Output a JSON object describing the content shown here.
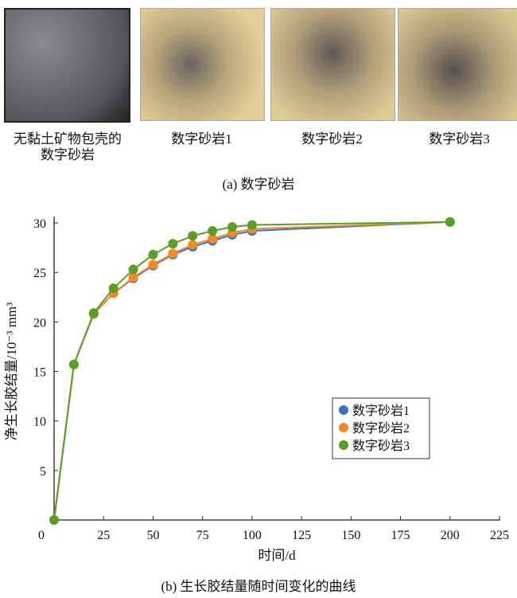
{
  "panel_a": {
    "samples": [
      {
        "label": "无黏土矿物包壳的\n数字砂岩",
        "style": "gray"
      },
      {
        "label": "数字砂岩1",
        "style": "sand"
      },
      {
        "label": "数字砂岩2",
        "style": "sand"
      },
      {
        "label": "数字砂岩3",
        "style": "sand"
      }
    ],
    "caption": "(a) 数字砂岩"
  },
  "panel_b_caption": "(b) 生长胶结量随时间变化的曲线",
  "chart_data": {
    "type": "line",
    "title": "",
    "xlabel": "时间/d",
    "ylabel": "净生长胶结量/10⁻³ mm³",
    "xlim": [
      0,
      225
    ],
    "ylim": [
      0,
      30
    ],
    "xticks": [
      0,
      25,
      50,
      75,
      100,
      125,
      150,
      175,
      200,
      225
    ],
    "yticks": [
      5,
      10,
      15,
      20,
      25,
      30
    ],
    "grid": false,
    "legend_position": "center-right",
    "x": [
      0,
      10,
      20,
      30,
      40,
      50,
      60,
      70,
      80,
      90,
      100,
      200
    ],
    "series": [
      {
        "name": "数字砂岩1",
        "color": "#3a70c0",
        "values": [
          0,
          15.7,
          20.8,
          22.9,
          24.4,
          25.7,
          26.8,
          27.6,
          28.2,
          28.8,
          29.2,
          30.1
        ]
      },
      {
        "name": "数字砂岩2",
        "color": "#f08a24",
        "values": [
          0,
          15.7,
          20.8,
          22.9,
          24.5,
          25.8,
          26.9,
          27.8,
          28.4,
          29.0,
          29.4,
          30.1
        ]
      },
      {
        "name": "数字砂岩3",
        "color": "#5a9e2a",
        "values": [
          0,
          15.7,
          20.9,
          23.4,
          25.3,
          26.8,
          27.9,
          28.7,
          29.2,
          29.6,
          29.8,
          30.1
        ]
      }
    ]
  }
}
